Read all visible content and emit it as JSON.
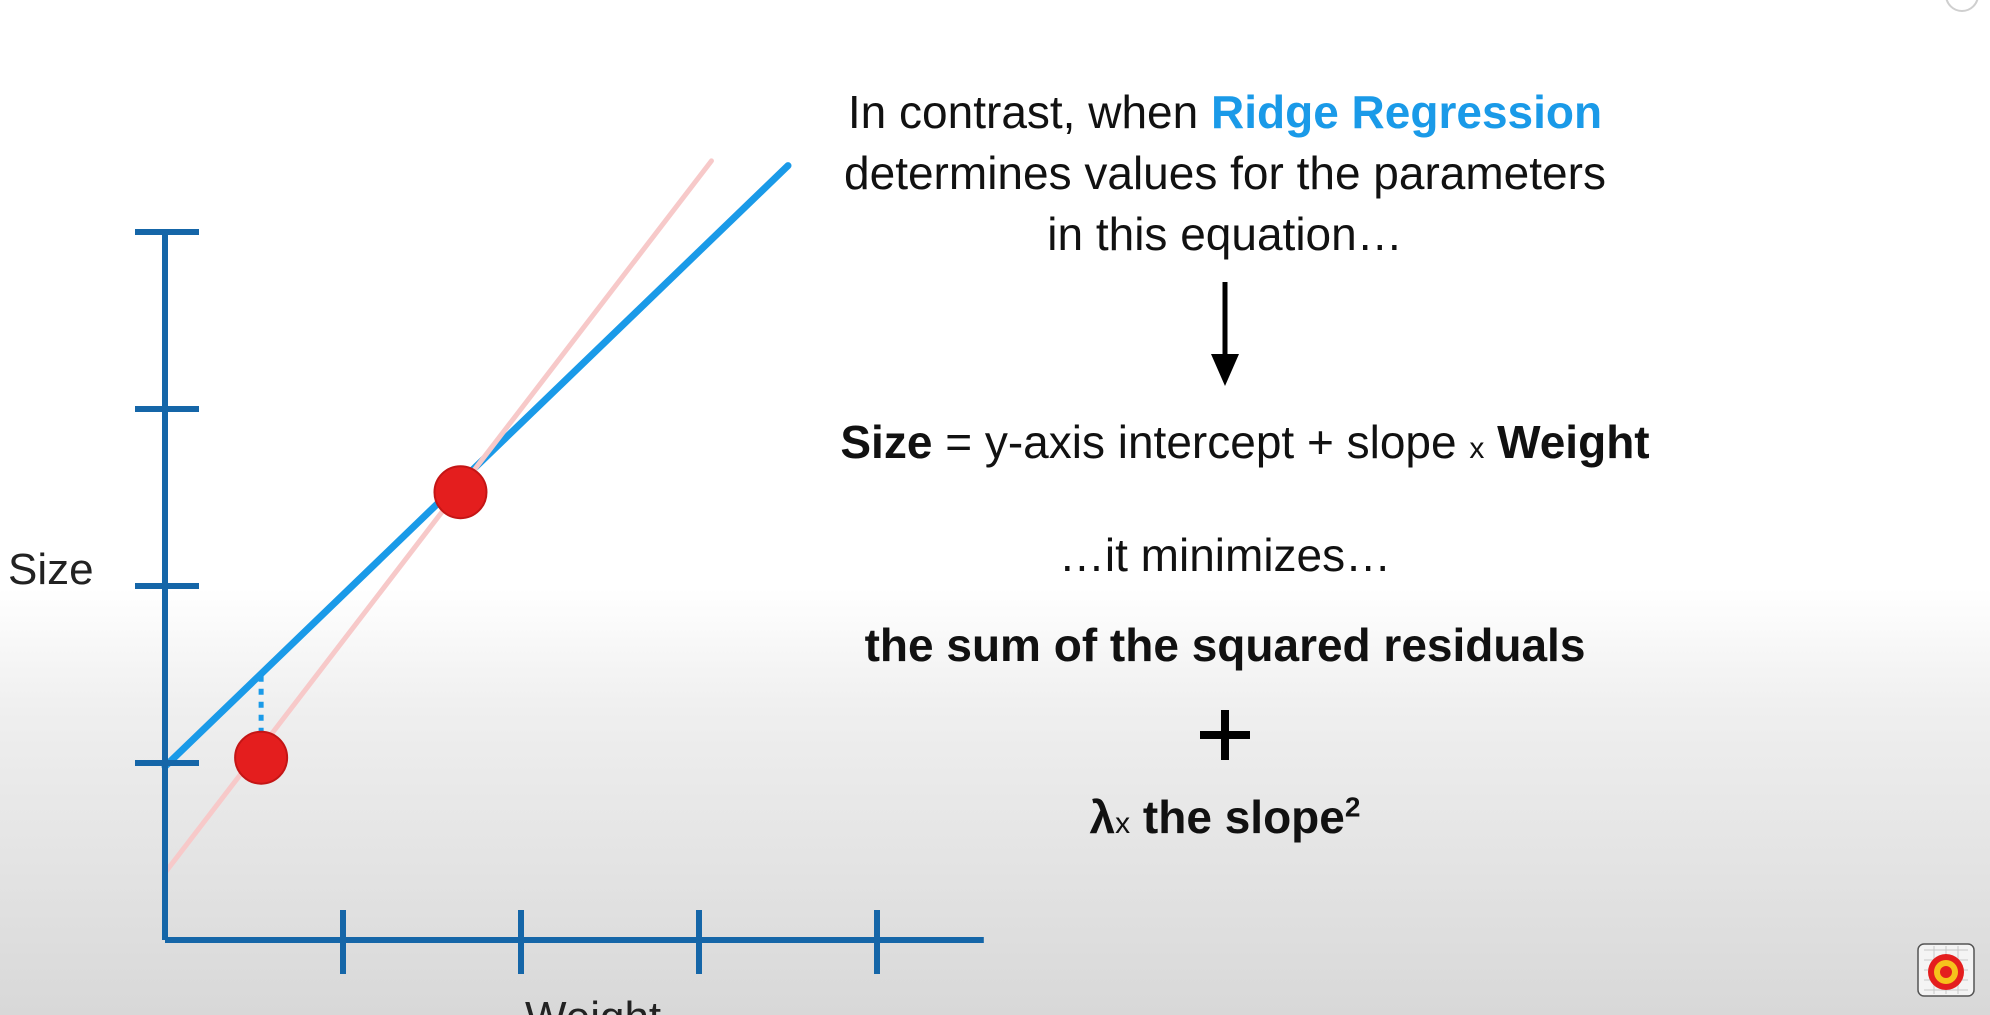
{
  "intro": {
    "line1_prefix": "In contrast, when ",
    "line1_highlight": "Ridge Regression",
    "line2": "determines values for the parameters",
    "line3": "in this equation…"
  },
  "equation": {
    "lhs": "Size",
    "rhs_prefix": " = y-axis intercept + slope ",
    "times": "x",
    "rhs_var": " Weight"
  },
  "minimizes": "…it minimizes…",
  "sum_term": "the sum of the squared residuals",
  "penalty": {
    "lambda": "λ",
    "times": "x",
    "text": " the slope",
    "exponent": "2"
  },
  "colors": {
    "axis": "#1566a8",
    "ridge_line": "#1a9ae8",
    "ls_line": "#f7c9c9",
    "points": "#e41e1e",
    "highlight_text": "#1a9ae8"
  },
  "chart_data": {
    "type": "scatter",
    "ylabel": "Size",
    "xlabel": "Weight",
    "xlim": [
      0,
      4.6
    ],
    "ylim": [
      0,
      4
    ],
    "xticks": [
      1,
      2,
      3,
      4
    ],
    "yticks": [
      1,
      2,
      3,
      4
    ],
    "grid": false,
    "points": [
      {
        "x": 0.54,
        "y": 1.03
      },
      {
        "x": 1.66,
        "y": 2.53
      }
    ],
    "lines": [
      {
        "role": "ridge",
        "intercept": 0.98,
        "slope": 0.97,
        "x_end": 3.5
      },
      {
        "role": "least-squares",
        "intercept": 0.38,
        "slope": 1.31,
        "x_end": 3.07
      }
    ]
  }
}
